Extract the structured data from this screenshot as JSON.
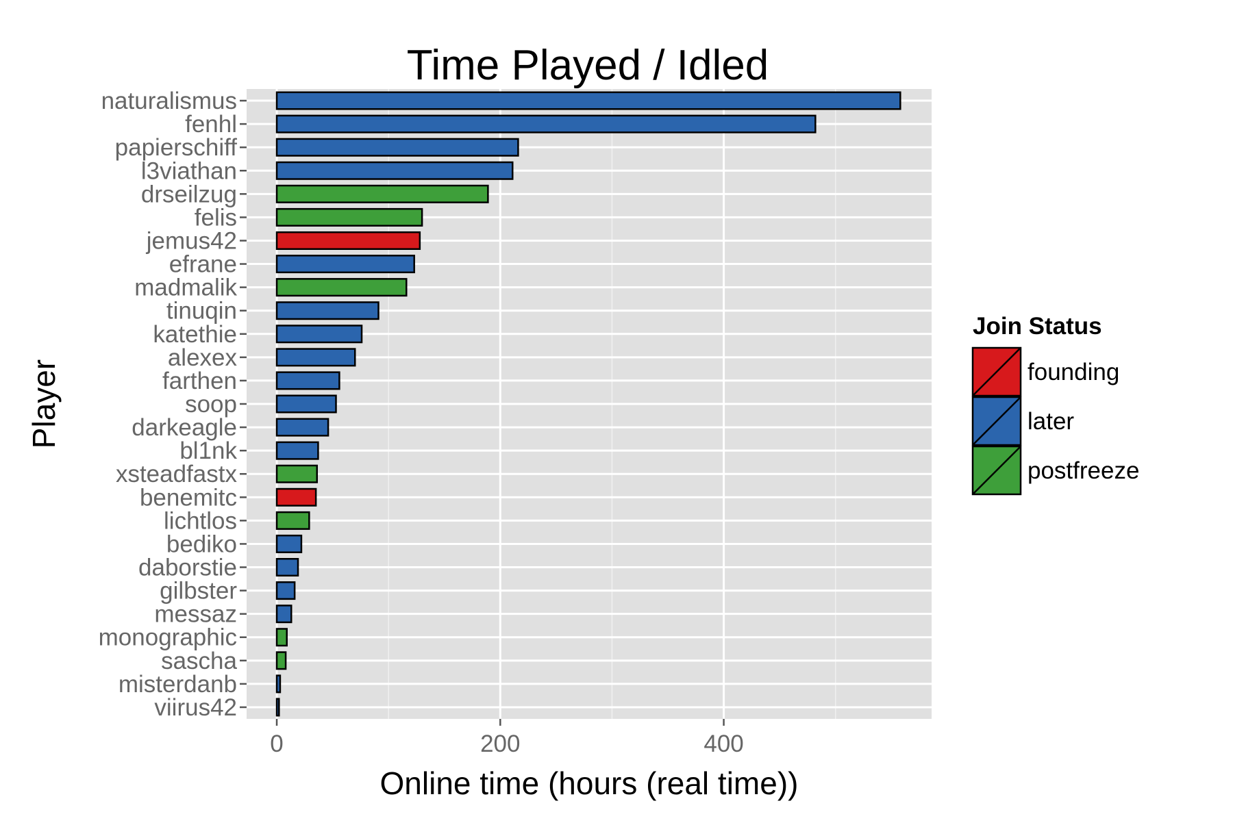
{
  "chart_data": {
    "type": "bar",
    "orientation": "horizontal",
    "title": "Time Played / Idled",
    "xlabel": "Online time (hours (real time))",
    "ylabel": "Player",
    "xlim": [
      -27,
      586
    ],
    "x_ticks": [
      0,
      200,
      400
    ],
    "x_minor_ticks": [
      100,
      300,
      500
    ],
    "grid": true,
    "legend": {
      "title": "Join Status",
      "placement": "right",
      "entries": [
        {
          "name": "founding",
          "color": "#d7191c"
        },
        {
          "name": "later",
          "color": "#2b65ad"
        },
        {
          "name": "postfreeze",
          "color": "#3e9f3a"
        }
      ]
    },
    "categories": [
      "naturalismus",
      "fenhl",
      "papierschiff",
      "l3viathan",
      "drseilzug",
      "felis",
      "jemus42",
      "efrane",
      "madmalik",
      "tinuqin",
      "katethie",
      "alexex",
      "farthen",
      "soop",
      "darkeagle",
      "bl1nk",
      "xsteadfastx",
      "benemitc",
      "lichtlos",
      "bediko",
      "daborstie",
      "gilbster",
      "messaz",
      "monographic",
      "sascha",
      "misterdanb",
      "viirus42"
    ],
    "values": [
      558,
      482,
      216,
      211,
      189,
      130,
      128,
      123,
      116,
      91,
      76,
      70,
      56,
      53,
      46,
      37,
      36,
      35,
      29,
      22,
      19,
      16,
      13,
      9,
      8,
      3,
      2
    ],
    "groups": [
      "later",
      "later",
      "later",
      "later",
      "postfreeze",
      "postfreeze",
      "founding",
      "later",
      "postfreeze",
      "later",
      "later",
      "later",
      "later",
      "later",
      "later",
      "later",
      "postfreeze",
      "founding",
      "postfreeze",
      "later",
      "later",
      "later",
      "later",
      "postfreeze",
      "postfreeze",
      "later",
      "later"
    ]
  }
}
